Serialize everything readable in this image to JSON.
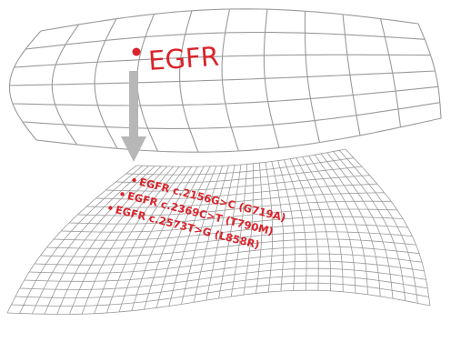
{
  "diagram": {
    "accent_color": "#d9232b",
    "grid_color": "#9a9a9a",
    "arrow_color": "#b7b7b7",
    "top_surface": {
      "label": "EGFR"
    },
    "bottom_surface": {
      "variants": [
        "EGFR c.2156G>C (G719A)",
        "EGFR c.2369C>T (T790M)",
        "EGFR c.2573T>G (L858R)"
      ]
    }
  }
}
